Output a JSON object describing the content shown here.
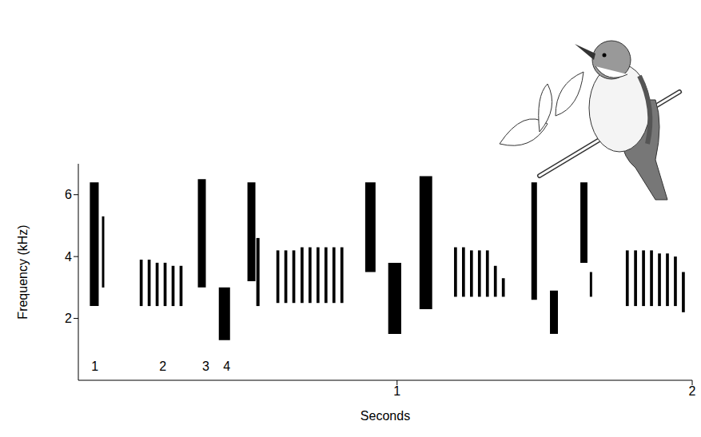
{
  "chart_data": {
    "type": "spectrogram",
    "x_label": "Seconds",
    "y_label": "Frequency (kHz)",
    "xlim": [
      -0.08,
      2
    ],
    "xticks": [
      1,
      2
    ],
    "ylim": [
      0,
      7
    ],
    "yticks": [
      2,
      4,
      6
    ],
    "color": "#000000",
    "grid": false,
    "annotations": [
      {
        "text": "1",
        "x": -0.024,
        "y": 0.45
      },
      {
        "text": "2",
        "x": 0.206,
        "y": 0.45
      },
      {
        "text": "3",
        "x": 0.352,
        "y": 0.45
      },
      {
        "text": "4",
        "x": 0.423,
        "y": 0.45
      }
    ],
    "elements": [
      {
        "t": [
          -0.041,
          -0.011
        ],
        "f": [
          2.4,
          6.4
        ]
      },
      {
        "t": [
          0.0,
          0.008
        ],
        "f": [
          3.0,
          5.3
        ]
      },
      {
        "t": [
          0.128,
          0.138
        ],
        "f": [
          2.4,
          3.9
        ]
      },
      {
        "t": [
          0.155,
          0.165
        ],
        "f": [
          2.4,
          3.9
        ]
      },
      {
        "t": [
          0.182,
          0.192
        ],
        "f": [
          2.4,
          3.8
        ]
      },
      {
        "t": [
          0.209,
          0.219
        ],
        "f": [
          2.4,
          3.8
        ]
      },
      {
        "t": [
          0.236,
          0.246
        ],
        "f": [
          2.4,
          3.7
        ]
      },
      {
        "t": [
          0.263,
          0.273
        ],
        "f": [
          2.4,
          3.7
        ]
      },
      {
        "t": [
          0.325,
          0.352
        ],
        "f": [
          3.0,
          6.5
        ]
      },
      {
        "t": [
          0.396,
          0.434
        ],
        "f": [
          1.3,
          3.0
        ]
      },
      {
        "t": [
          0.493,
          0.52
        ],
        "f": [
          3.2,
          6.4
        ]
      },
      {
        "t": [
          0.523,
          0.534
        ],
        "f": [
          2.4,
          4.6
        ]
      },
      {
        "t": [
          0.591,
          0.601
        ],
        "f": [
          2.5,
          4.2
        ]
      },
      {
        "t": [
          0.618,
          0.628
        ],
        "f": [
          2.5,
          4.2
        ]
      },
      {
        "t": [
          0.645,
          0.655
        ],
        "f": [
          2.5,
          4.2
        ]
      },
      {
        "t": [
          0.673,
          0.683
        ],
        "f": [
          2.5,
          4.3
        ]
      },
      {
        "t": [
          0.7,
          0.71
        ],
        "f": [
          2.5,
          4.3
        ]
      },
      {
        "t": [
          0.727,
          0.737
        ],
        "f": [
          2.5,
          4.3
        ]
      },
      {
        "t": [
          0.754,
          0.764
        ],
        "f": [
          2.5,
          4.3
        ]
      },
      {
        "t": [
          0.781,
          0.791
        ],
        "f": [
          2.5,
          4.3
        ]
      },
      {
        "t": [
          0.808,
          0.818
        ],
        "f": [
          2.5,
          4.3
        ]
      },
      {
        "t": [
          0.892,
          0.927
        ],
        "f": [
          3.5,
          6.4
        ]
      },
      {
        "t": [
          0.97,
          1.014
        ],
        "f": [
          1.5,
          3.8
        ]
      },
      {
        "t": [
          1.076,
          1.119
        ],
        "f": [
          2.3,
          6.6
        ]
      },
      {
        "t": [
          1.193,
          1.203
        ],
        "f": [
          2.7,
          4.3
        ]
      },
      {
        "t": [
          1.22,
          1.23
        ],
        "f": [
          2.7,
          4.3
        ]
      },
      {
        "t": [
          1.247,
          1.257
        ],
        "f": [
          2.7,
          4.2
        ]
      },
      {
        "t": [
          1.274,
          1.284
        ],
        "f": [
          2.7,
          4.2
        ]
      },
      {
        "t": [
          1.301,
          1.311
        ],
        "f": [
          2.7,
          4.2
        ]
      },
      {
        "t": [
          1.328,
          1.338
        ],
        "f": [
          2.7,
          3.7
        ]
      },
      {
        "t": [
          1.355,
          1.365
        ],
        "f": [
          2.7,
          3.3
        ]
      },
      {
        "t": [
          1.455,
          1.474
        ],
        "f": [
          2.6,
          6.4
        ]
      },
      {
        "t": [
          1.518,
          1.545
        ],
        "f": [
          1.5,
          2.9
        ]
      },
      {
        "t": [
          1.621,
          1.645
        ],
        "f": [
          3.8,
          6.4
        ]
      },
      {
        "t": [
          1.653,
          1.661
        ],
        "f": [
          2.7,
          3.5
        ]
      },
      {
        "t": [
          1.775,
          1.785
        ],
        "f": [
          2.4,
          4.2
        ]
      },
      {
        "t": [
          1.803,
          1.813
        ],
        "f": [
          2.4,
          4.2
        ]
      },
      {
        "t": [
          1.83,
          1.84
        ],
        "f": [
          2.4,
          4.2
        ]
      },
      {
        "t": [
          1.857,
          1.867
        ],
        "f": [
          2.4,
          4.2
        ]
      },
      {
        "t": [
          1.884,
          1.894
        ],
        "f": [
          2.4,
          4.1
        ]
      },
      {
        "t": [
          1.911,
          1.921
        ],
        "f": [
          2.4,
          4.1
        ]
      },
      {
        "t": [
          1.938,
          1.948
        ],
        "f": [
          2.4,
          4.0
        ]
      },
      {
        "t": [
          1.965,
          1.975
        ],
        "f": [
          2.2,
          3.5
        ]
      }
    ]
  }
}
